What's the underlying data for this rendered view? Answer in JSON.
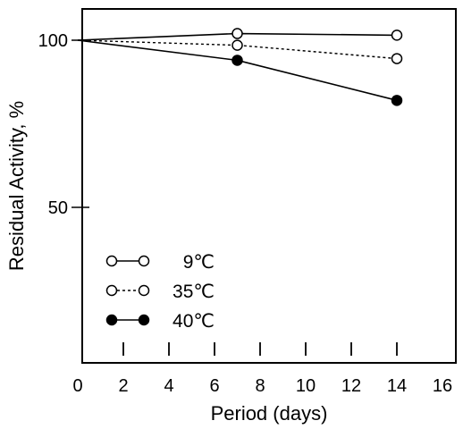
{
  "chart_data": {
    "type": "line",
    "title": "",
    "xlabel": "Period (days)",
    "ylabel": "Residual Activity, %",
    "xlim": [
      0,
      16
    ],
    "ylim": [
      10,
      110
    ],
    "x_ticks": [
      "0",
      "2",
      "4",
      "6",
      "8",
      "10",
      "12",
      "14",
      "16"
    ],
    "y_ticks": [
      "50",
      "100"
    ],
    "grid": false,
    "legend_position": "bottom-left",
    "series": [
      {
        "name": "9℃",
        "line": "solid",
        "marker": "open-circle",
        "x": [
          0,
          7,
          14
        ],
        "y": [
          100,
          102,
          101.5
        ]
      },
      {
        "name": "35℃",
        "line": "dotted",
        "marker": "open-circle",
        "x": [
          0,
          7,
          14
        ],
        "y": [
          100,
          98.5,
          94.5
        ]
      },
      {
        "name": "40℃",
        "line": "solid",
        "marker": "filled-circle",
        "x": [
          0,
          7,
          14
        ],
        "y": [
          100,
          94,
          82
        ]
      }
    ]
  }
}
